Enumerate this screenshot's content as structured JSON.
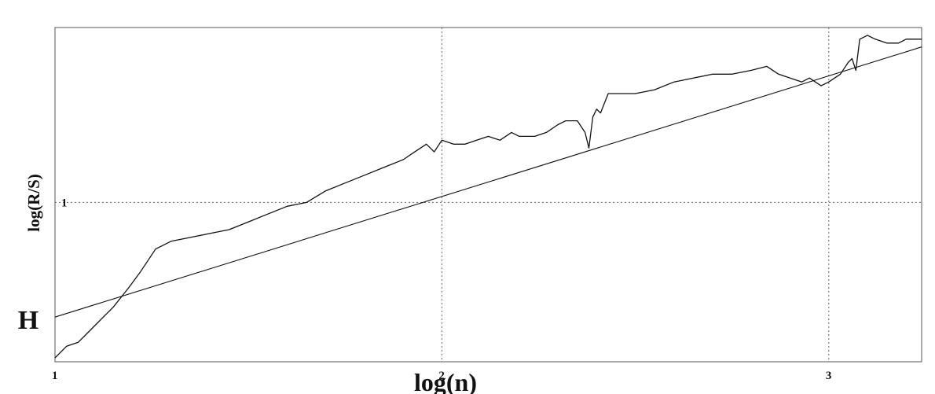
{
  "chart_data": {
    "type": "line",
    "title": "",
    "xlabel": "log(n)",
    "ylabel": "log(R/S)",
    "annotation": "H",
    "xlim": [
      1,
      3.24
    ],
    "ylim": [
      0.59,
      1.45
    ],
    "x_ticks": [
      {
        "value": 1,
        "label": "1"
      },
      {
        "value": 2,
        "label": "2"
      },
      {
        "value": 3,
        "label": "3"
      }
    ],
    "y_ticks": [
      {
        "value": 1,
        "label": "1"
      }
    ],
    "grid": "dotted",
    "series": [
      {
        "kind": "data",
        "x": [
          1.0,
          1.03,
          1.06,
          1.09,
          1.12,
          1.15,
          1.19,
          1.22,
          1.26,
          1.3,
          1.35,
          1.4,
          1.45,
          1.5,
          1.55,
          1.6,
          1.65,
          1.7,
          1.75,
          1.8,
          1.85,
          1.9,
          1.93,
          1.96,
          1.98,
          2.0,
          2.03,
          2.06,
          2.09,
          2.12,
          2.15,
          2.18,
          2.2,
          2.24,
          2.27,
          2.3,
          2.32,
          2.35,
          2.37,
          2.38,
          2.39,
          2.4,
          2.41,
          2.43,
          2.46,
          2.5,
          2.55,
          2.6,
          2.65,
          2.7,
          2.75,
          2.8,
          2.84,
          2.87,
          2.9,
          2.93,
          2.95,
          2.98,
          3.0,
          3.03,
          3.05,
          3.06,
          3.07,
          3.08,
          3.1,
          3.12,
          3.15,
          3.18,
          3.2,
          3.22,
          3.24
        ],
        "y": [
          0.6,
          0.63,
          0.64,
          0.67,
          0.7,
          0.73,
          0.78,
          0.82,
          0.88,
          0.9,
          0.91,
          0.92,
          0.93,
          0.95,
          0.97,
          0.99,
          1.0,
          1.03,
          1.05,
          1.07,
          1.09,
          1.11,
          1.13,
          1.15,
          1.13,
          1.16,
          1.15,
          1.15,
          1.16,
          1.17,
          1.16,
          1.18,
          1.17,
          1.17,
          1.18,
          1.2,
          1.21,
          1.21,
          1.18,
          1.14,
          1.22,
          1.24,
          1.23,
          1.28,
          1.28,
          1.28,
          1.29,
          1.31,
          1.32,
          1.33,
          1.33,
          1.34,
          1.35,
          1.33,
          1.32,
          1.31,
          1.32,
          1.3,
          1.31,
          1.33,
          1.36,
          1.37,
          1.34,
          1.42,
          1.43,
          1.42,
          1.41,
          1.41,
          1.42,
          1.42,
          1.42
        ]
      },
      {
        "kind": "fit",
        "x": [
          1.0,
          3.24
        ],
        "y": [
          0.705,
          1.4
        ]
      }
    ]
  }
}
